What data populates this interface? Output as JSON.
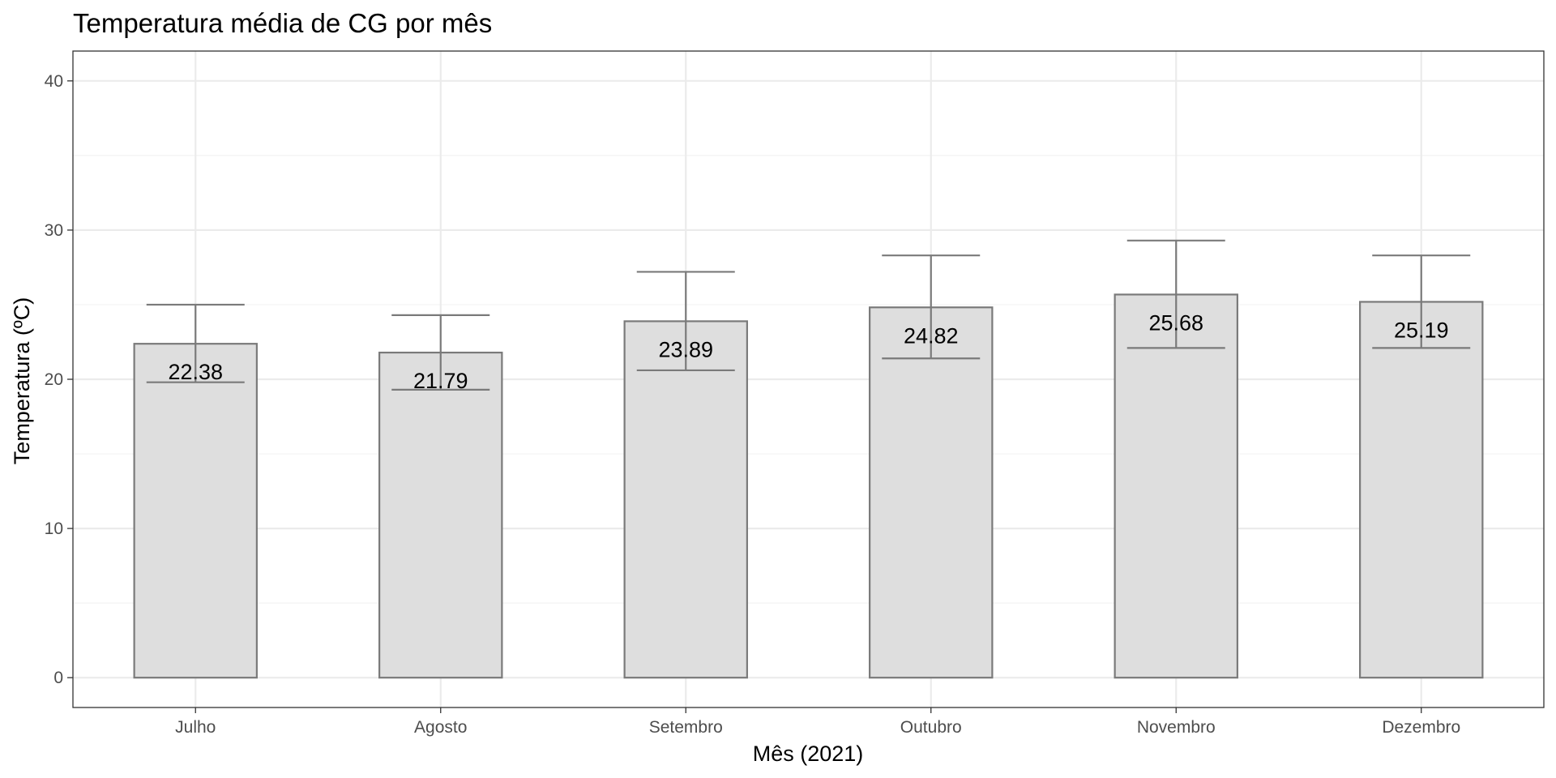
{
  "chart_data": {
    "type": "bar",
    "title": "Temperatura média de CG por mês",
    "xlabel": "Mês (2021)",
    "ylabel": "Temperatura (ºC)",
    "categories": [
      "Julho",
      "Agosto",
      "Setembro",
      "Outubro",
      "Novembro",
      "Dezembro"
    ],
    "values": [
      22.38,
      21.79,
      23.89,
      24.82,
      25.68,
      25.19
    ],
    "value_labels": [
      "22.38",
      "21.79",
      "23.89",
      "24.82",
      "25.68",
      "25.19"
    ],
    "error_bars": {
      "lower": [
        19.8,
        19.3,
        20.6,
        21.4,
        22.1,
        22.1
      ],
      "upper": [
        25.0,
        24.3,
        27.2,
        28.3,
        29.3,
        28.3
      ]
    },
    "ylim": [
      -2,
      42
    ],
    "yticks": [
      0,
      10,
      20,
      30,
      40
    ],
    "ytick_labels": [
      "0",
      "10",
      "20",
      "30",
      "40"
    ],
    "grid": true,
    "colors": {
      "bar_fill": "#dedede",
      "bar_stroke": "#7a7a7a",
      "error_bar": "#7a7a7a",
      "grid_major": "#ebebeb",
      "grid_minor": "#f3f3f3",
      "panel_border": "#333333"
    }
  }
}
